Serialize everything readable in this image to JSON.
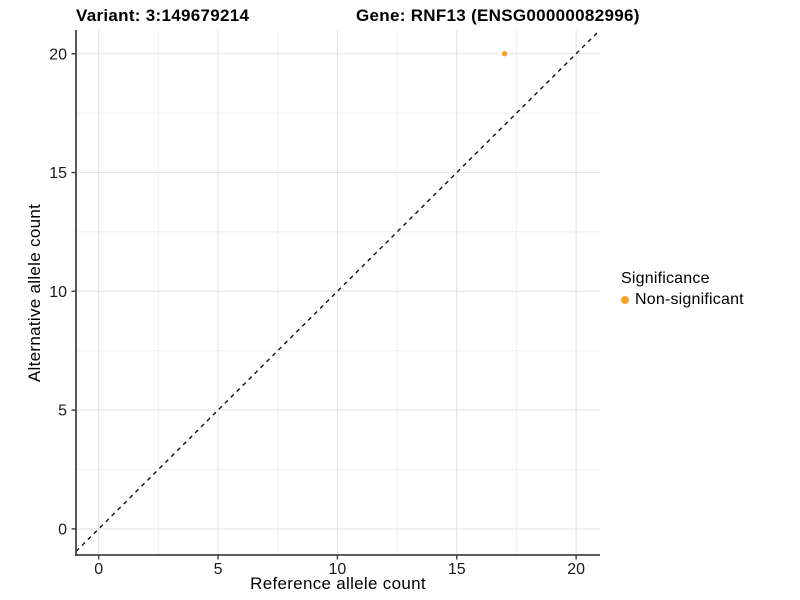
{
  "chart_data": {
    "type": "scatter",
    "title_variant": "Variant: 3:149679214",
    "title_gene": "Gene: RNF13 (ENSG00000082996)",
    "xlabel": "Reference allele count",
    "ylabel": "Alternative allele count",
    "xlim": [
      -0.95,
      21.0
    ],
    "ylim": [
      -1.1,
      21.0
    ],
    "x_ticks": [
      0,
      5,
      10,
      15,
      20
    ],
    "y_ticks": [
      0,
      5,
      10,
      15,
      20
    ],
    "x_minor_ticks": [
      2.5,
      7.5,
      12.5,
      17.5
    ],
    "y_minor_ticks": [
      2.5,
      7.5,
      12.5,
      17.5
    ],
    "grid": true,
    "identity_line": {
      "equation": "y = x",
      "style": "dashed",
      "color": "#111111"
    },
    "series": [
      {
        "name": "Non-significant",
        "color": "#FBA029",
        "points": [
          {
            "x": 17,
            "y": 20
          }
        ]
      }
    ],
    "legend": {
      "title": "Significance",
      "position": "right",
      "items": [
        {
          "label": "Non-significant",
          "color": "#FBA029"
        }
      ]
    },
    "colors": {
      "grid_major": "#E3E3E3",
      "grid_minor": "#F0F0F0",
      "axis_line": "#454545",
      "tick_mark": "#454545",
      "tick_text": "#1a1a1a",
      "background": "#ffffff"
    }
  }
}
